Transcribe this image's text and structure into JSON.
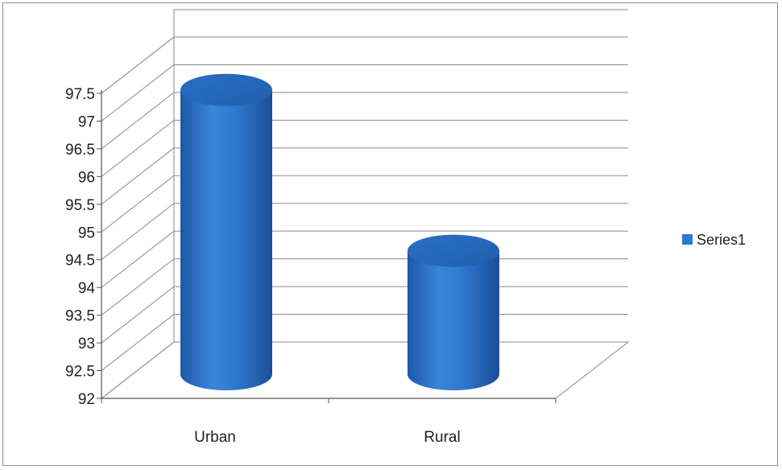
{
  "chart_data": {
    "type": "bar",
    "style": "3d-cylinder",
    "categories": [
      "Urban",
      "Rural"
    ],
    "series": [
      {
        "name": "Series1",
        "values": [
          97.3,
          94.4
        ]
      }
    ],
    "ylim": [
      92,
      97.5
    ],
    "ytick_labels": [
      "92",
      "92.5",
      "93",
      "93.5",
      "94",
      "94.5",
      "95",
      "95.5",
      "96",
      "96.5",
      "97",
      "97.5"
    ],
    "grid": true,
    "legend": "right",
    "colors": {
      "series": "#2e78d0",
      "series_dark": "#1d58a8",
      "series_light": "#5a9ae0",
      "grid": "#8a8a8a"
    }
  }
}
